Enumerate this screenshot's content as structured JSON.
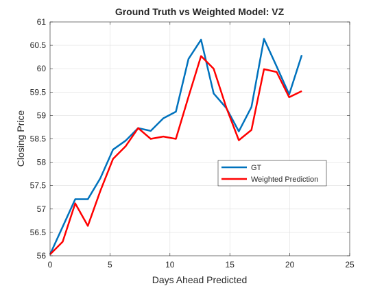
{
  "chart_data": {
    "type": "line",
    "title": "Ground Truth vs Weighted Model: VZ",
    "xlabel": "Days Ahead Predicted",
    "ylabel": "Closing Price",
    "xlim": [
      0,
      25
    ],
    "ylim": [
      56,
      61
    ],
    "xticks": [
      "0",
      "5",
      "10",
      "15",
      "20",
      "25"
    ],
    "yticks": [
      "56",
      "56.5",
      "57",
      "57.5",
      "58",
      "58.5",
      "59",
      "59.5",
      "60",
      "60.5",
      "61"
    ],
    "grid": true,
    "legend_position": "inside-right",
    "x": [
      0,
      1.05,
      2.1,
      3.15,
      4.2,
      5.25,
      6.3,
      7.35,
      8.4,
      9.45,
      10.5,
      11.55,
      12.6,
      13.65,
      14.7,
      15.75,
      16.8,
      17.85,
      18.9,
      19.95,
      21.0
    ],
    "series": [
      {
        "name": "GT",
        "color": "#0072BD",
        "values": [
          56.03,
          56.62,
          57.21,
          57.21,
          57.66,
          58.27,
          58.46,
          58.73,
          58.67,
          58.94,
          59.08,
          60.21,
          60.62,
          59.47,
          59.16,
          58.66,
          59.18,
          60.64,
          60.05,
          59.45,
          60.29
        ]
      },
      {
        "name": "Weighted Prediction",
        "color": "#FF0000",
        "values": [
          56.03,
          56.3,
          57.12,
          56.64,
          57.39,
          58.07,
          58.34,
          58.73,
          58.5,
          58.55,
          58.5,
          59.4,
          60.27,
          60.0,
          59.17,
          58.47,
          58.69,
          59.99,
          59.93,
          59.39,
          59.52
        ]
      }
    ]
  }
}
